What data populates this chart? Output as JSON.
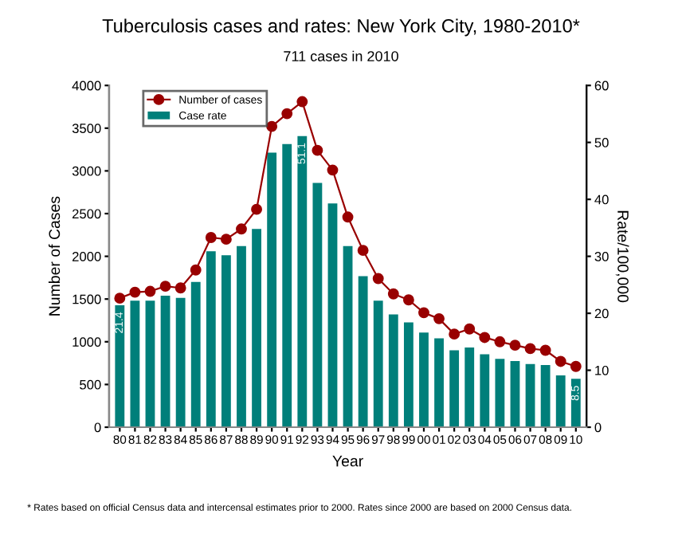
{
  "chart_data": {
    "type": "bar",
    "title": "Tuberculosis cases and rates: New York City, 1980-2010*",
    "subtitle": "711 cases in 2010",
    "xlabel": "Year",
    "ylabel": "Number of Cases",
    "y2label": "Rate/100,000",
    "categories": [
      "80",
      "81",
      "82",
      "83",
      "84",
      "85",
      "86",
      "87",
      "88",
      "89",
      "90",
      "91",
      "92",
      "93",
      "94",
      "95",
      "96",
      "97",
      "98",
      "99",
      "00",
      "01",
      "02",
      "03",
      "04",
      "05",
      "06",
      "07",
      "08",
      "09",
      "10"
    ],
    "series": [
      {
        "name": "Number of cases",
        "type": "line",
        "color": "#990000",
        "marker": "circle",
        "values": [
          1510,
          1580,
          1590,
          1650,
          1630,
          1840,
          2220,
          2200,
          2320,
          2550,
          3520,
          3670,
          3810,
          3240,
          3010,
          2460,
          2070,
          1740,
          1560,
          1490,
          1340,
          1270,
          1090,
          1150,
          1050,
          1000,
          960,
          920,
          900,
          770,
          711
        ]
      },
      {
        "name": "Case rate",
        "axis": "y2",
        "color": "#007f7a",
        "values": [
          21.4,
          22.2,
          22.2,
          23.1,
          22.7,
          25.5,
          30.9,
          30.2,
          31.8,
          34.8,
          48.2,
          49.7,
          51.1,
          42.9,
          39.3,
          31.8,
          26.5,
          22.2,
          19.8,
          18.4,
          16.6,
          15.6,
          13.5,
          14.0,
          12.8,
          12.0,
          11.6,
          11.1,
          10.9,
          9.1,
          8.5
        ],
        "value_labels": [
          "21.4",
          null,
          null,
          null,
          null,
          null,
          null,
          null,
          null,
          null,
          null,
          null,
          "51.1",
          null,
          null,
          null,
          null,
          null,
          null,
          null,
          null,
          null,
          null,
          null,
          null,
          null,
          null,
          null,
          null,
          null,
          "8.5"
        ]
      }
    ],
    "ylim": [
      0,
      4000
    ],
    "yticks": [
      0,
      500,
      1000,
      1500,
      2000,
      2500,
      3000,
      3500,
      4000
    ],
    "y2lim": [
      0,
      60
    ],
    "y2ticks": [
      0,
      10,
      20,
      30,
      40,
      50,
      60
    ],
    "legend": "top left",
    "grid": false,
    "annotations": [
      "* Rates based on official Census data and intercensal estimates prior to 2000. Rates since 2000 are based on 2000 Census data."
    ]
  }
}
